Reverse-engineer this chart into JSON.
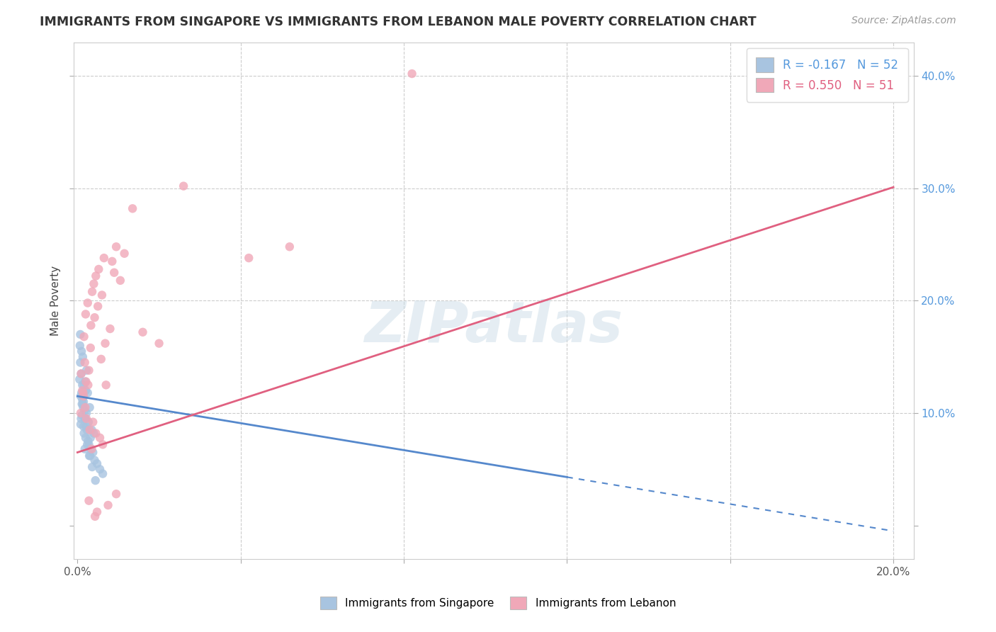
{
  "title": "IMMIGRANTS FROM SINGAPORE VS IMMIGRANTS FROM LEBANON MALE POVERTY CORRELATION CHART",
  "source": "Source: ZipAtlas.com",
  "ylabel": "Male Poverty",
  "xlim": [
    -0.001,
    0.205
  ],
  "ylim": [
    -0.03,
    0.43
  ],
  "x_ticks": [
    0.0,
    0.04,
    0.08,
    0.12,
    0.16,
    0.2
  ],
  "y_ticks": [
    0.0,
    0.1,
    0.2,
    0.3,
    0.4
  ],
  "singapore_color": "#a8c4e0",
  "lebanon_color": "#f0a8b8",
  "singapore_R": -0.167,
  "singapore_N": 52,
  "lebanon_R": 0.55,
  "lebanon_N": 51,
  "singapore_line_color": "#5588cc",
  "lebanon_line_color": "#e06080",
  "watermark": "ZIPatlas",
  "background_color": "#ffffff",
  "grid_color": "#cccccc",
  "singapore_scatter_x": [
    0.0008,
    0.0012,
    0.0005,
    0.0015,
    0.002,
    0.001,
    0.0025,
    0.0008,
    0.003,
    0.0018,
    0.0022,
    0.0014,
    0.0016,
    0.0009,
    0.0035,
    0.0027,
    0.0013,
    0.004,
    0.0011,
    0.0021,
    0.0032,
    0.0017,
    0.0028,
    0.0012,
    0.0007,
    0.0019,
    0.0023,
    0.0033,
    0.001,
    0.0026,
    0.0015,
    0.0006,
    0.0038,
    0.002,
    0.0009,
    0.0031,
    0.0016,
    0.0042,
    0.0024,
    0.0011,
    0.0018,
    0.0007,
    0.0048,
    0.0014,
    0.0029,
    0.0055,
    0.0022,
    0.0036,
    0.0019,
    0.0062,
    0.0013,
    0.0044
  ],
  "singapore_scatter_y": [
    0.115,
    0.125,
    0.13,
    0.11,
    0.12,
    0.155,
    0.118,
    0.09,
    0.105,
    0.095,
    0.1,
    0.115,
    0.125,
    0.135,
    0.085,
    0.092,
    0.108,
    0.082,
    0.098,
    0.088,
    0.078,
    0.102,
    0.072,
    0.112,
    0.145,
    0.095,
    0.085,
    0.068,
    0.118,
    0.075,
    0.088,
    0.16,
    0.065,
    0.078,
    0.095,
    0.062,
    0.082,
    0.058,
    0.072,
    0.108,
    0.068,
    0.17,
    0.055,
    0.105,
    0.062,
    0.05,
    0.138,
    0.052,
    0.128,
    0.046,
    0.15,
    0.04
  ],
  "lebanon_scatter_x": [
    0.0008,
    0.0015,
    0.0022,
    0.0012,
    0.003,
    0.0019,
    0.0038,
    0.0026,
    0.0009,
    0.0045,
    0.0021,
    0.0055,
    0.0014,
    0.0035,
    0.0028,
    0.0062,
    0.0018,
    0.0042,
    0.007,
    0.0032,
    0.005,
    0.0016,
    0.008,
    0.0025,
    0.006,
    0.004,
    0.002,
    0.009,
    0.0033,
    0.0068,
    0.0048,
    0.0028,
    0.0095,
    0.0043,
    0.0075,
    0.0058,
    0.0036,
    0.0105,
    0.0052,
    0.0085,
    0.0065,
    0.0045,
    0.082,
    0.0115,
    0.0135,
    0.0095,
    0.016,
    0.02,
    0.026,
    0.042,
    0.052
  ],
  "lebanon_scatter_y": [
    0.1,
    0.115,
    0.095,
    0.12,
    0.085,
    0.105,
    0.092,
    0.125,
    0.135,
    0.082,
    0.128,
    0.078,
    0.118,
    0.068,
    0.138,
    0.072,
    0.145,
    0.185,
    0.125,
    0.158,
    0.195,
    0.168,
    0.175,
    0.198,
    0.205,
    0.215,
    0.188,
    0.225,
    0.178,
    0.162,
    0.012,
    0.022,
    0.028,
    0.008,
    0.018,
    0.148,
    0.208,
    0.218,
    0.228,
    0.235,
    0.238,
    0.222,
    0.402,
    0.242,
    0.282,
    0.248,
    0.172,
    0.162,
    0.302,
    0.238,
    0.248
  ],
  "sg_line_x_solid_end": 0.12,
  "sg_line_intercept": 0.115,
  "sg_line_slope": -0.6,
  "lb_line_intercept": 0.065,
  "lb_line_slope": 1.18
}
